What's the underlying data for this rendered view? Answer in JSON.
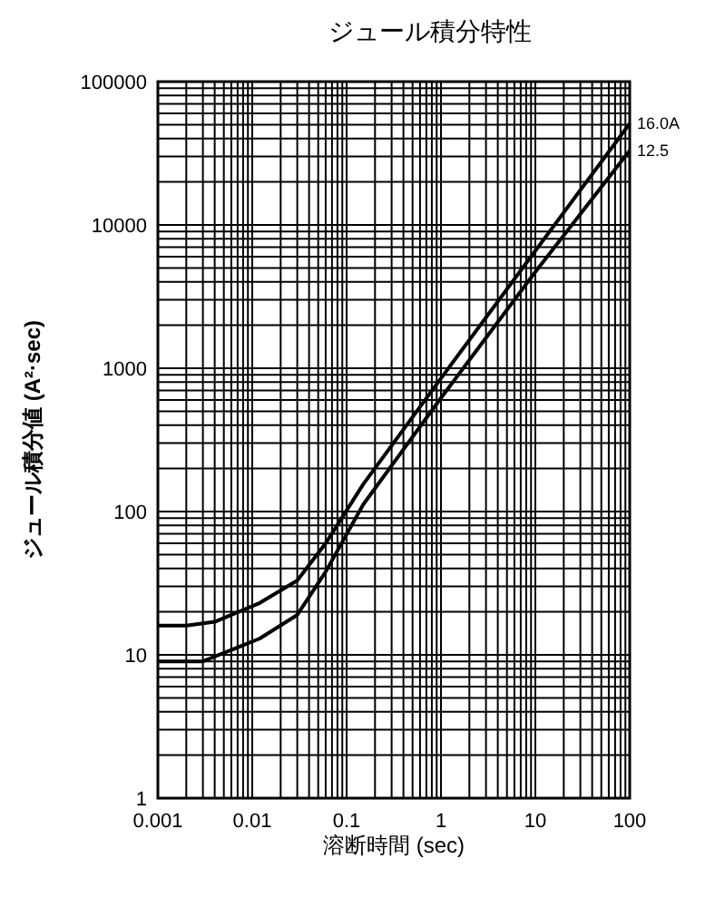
{
  "chart_data": {
    "type": "line",
    "title": "ジュール積分特性",
    "xlabel": "溶断時間 (sec)",
    "ylabel": "ジュール積分値 (A²·sec)",
    "log": "xy",
    "grid": true,
    "xlim": [
      0.001,
      100
    ],
    "ylim": [
      1,
      100000
    ],
    "xticks": [
      0.001,
      0.01,
      0.1,
      1,
      10,
      100
    ],
    "yticks": [
      1,
      10,
      100,
      1000,
      10000,
      100000
    ],
    "series": [
      {
        "name": "16.0A",
        "color": "#000000",
        "x": [
          0.001,
          0.002,
          0.004,
          0.012,
          0.03,
          0.06,
          0.15,
          1,
          10,
          100
        ],
        "values": [
          16,
          16,
          17,
          23,
          33,
          60,
          155,
          850,
          6600,
          51000
        ]
      },
      {
        "name": "12.5",
        "color": "#000000",
        "x": [
          0.001,
          0.003,
          0.012,
          0.03,
          0.06,
          0.15,
          1,
          10,
          100
        ],
        "values": [
          9,
          9,
          13,
          19,
          38,
          112,
          620,
          4700,
          33000
        ]
      }
    ]
  }
}
